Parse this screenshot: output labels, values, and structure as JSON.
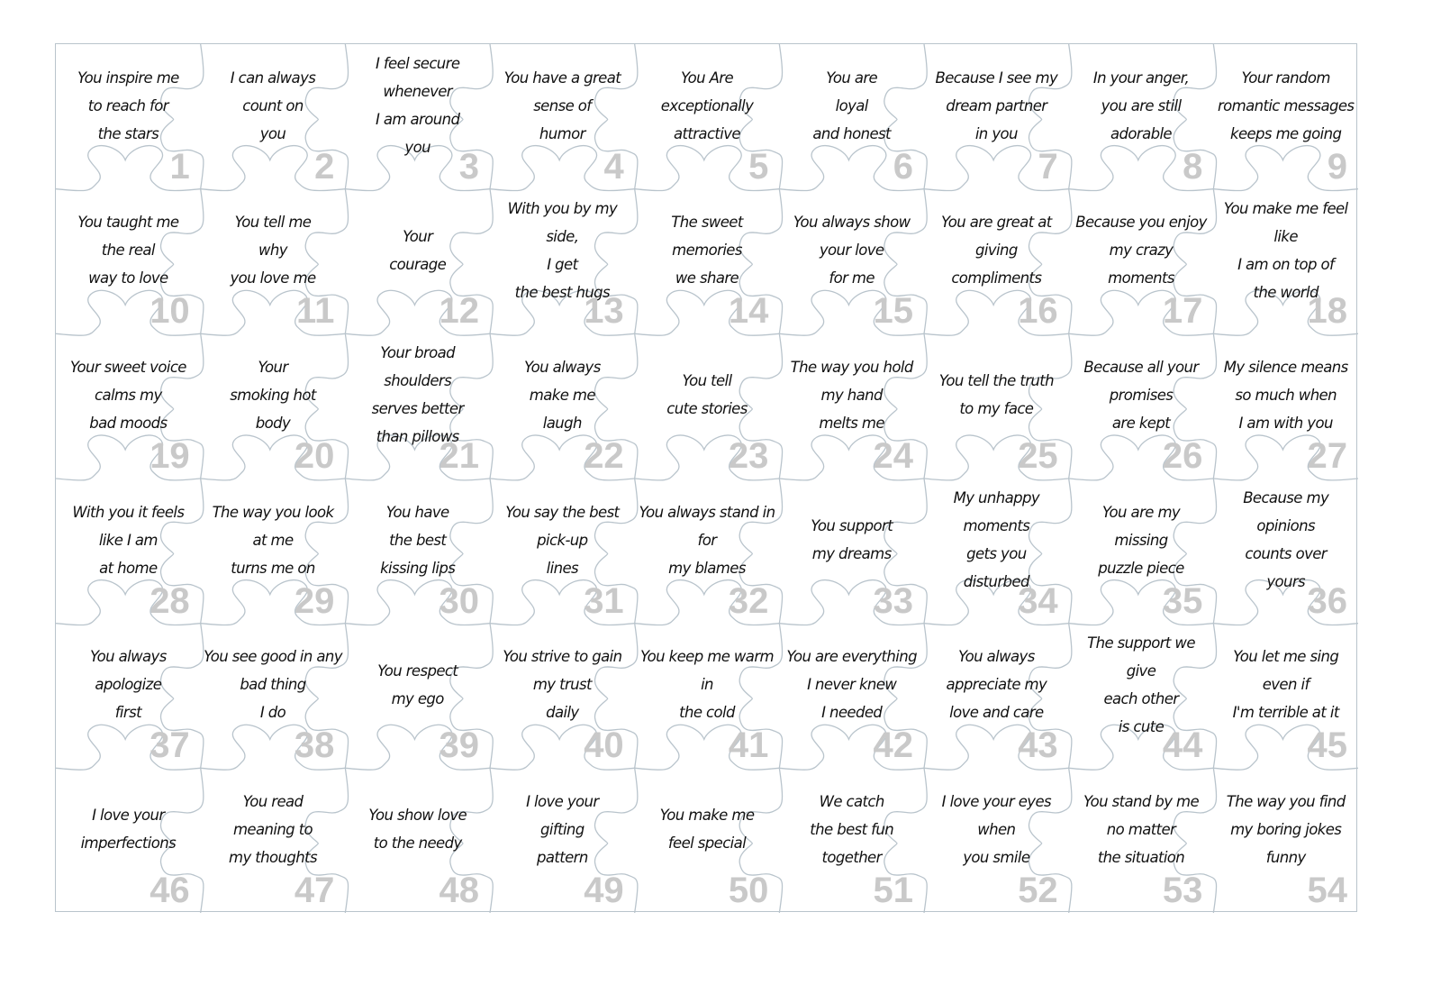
{
  "line_color": "#b9c4cc",
  "number_color": "#c9c9c9",
  "pieces": [
    {
      "n": "1",
      "lines": [
        "You inspire me",
        "to reach for",
        "the stars"
      ]
    },
    {
      "n": "2",
      "lines": [
        "I can always",
        "count on",
        "you"
      ]
    },
    {
      "n": "3",
      "lines": [
        "I feel secure whenever",
        "I am around",
        "you"
      ]
    },
    {
      "n": "4",
      "lines": [
        "You have a great",
        "sense of",
        "humor"
      ]
    },
    {
      "n": "5",
      "lines": [
        "You Are",
        "exceptionally",
        "attractive"
      ]
    },
    {
      "n": "6",
      "lines": [
        "You are",
        "loyal",
        "and honest"
      ]
    },
    {
      "n": "7",
      "lines": [
        "Because I see my",
        "dream partner",
        "in you"
      ]
    },
    {
      "n": "8",
      "lines": [
        "In your anger,",
        "you are still",
        "adorable"
      ]
    },
    {
      "n": "9",
      "lines": [
        "Your random",
        "romantic messages",
        "keeps me going"
      ]
    },
    {
      "n": "10",
      "lines": [
        "You taught me",
        "the real",
        "way to love"
      ]
    },
    {
      "n": "11",
      "lines": [
        "You tell me",
        "why",
        "you love me"
      ]
    },
    {
      "n": "12",
      "lines": [
        "Your",
        "courage"
      ]
    },
    {
      "n": "13",
      "lines": [
        "With you by my side,",
        "I get",
        "the best hugs"
      ]
    },
    {
      "n": "14",
      "lines": [
        "The sweet",
        "memories",
        "we share"
      ]
    },
    {
      "n": "15",
      "lines": [
        "You always show",
        "your love",
        "for me"
      ]
    },
    {
      "n": "16",
      "lines": [
        "You are great at",
        "giving",
        "compliments"
      ]
    },
    {
      "n": "17",
      "lines": [
        "Because you enjoy",
        "my crazy",
        "moments"
      ]
    },
    {
      "n": "18",
      "lines": [
        "You make me feel like",
        "I am on top of",
        "the world"
      ]
    },
    {
      "n": "19",
      "lines": [
        "Your sweet voice",
        "calms my",
        "bad moods"
      ]
    },
    {
      "n": "20",
      "lines": [
        "Your",
        "smoking hot",
        "body"
      ]
    },
    {
      "n": "21",
      "lines": [
        "Your broad shoulders",
        "serves better",
        "than pillows"
      ]
    },
    {
      "n": "22",
      "lines": [
        "You always",
        "make me",
        "laugh"
      ]
    },
    {
      "n": "23",
      "lines": [
        "You tell",
        "cute stories"
      ]
    },
    {
      "n": "24",
      "lines": [
        "The way you hold",
        "my hand",
        "melts me"
      ]
    },
    {
      "n": "25",
      "lines": [
        "You tell the truth",
        "to my face"
      ]
    },
    {
      "n": "26",
      "lines": [
        "Because all your",
        "promises",
        "are kept"
      ]
    },
    {
      "n": "27",
      "lines": [
        "My silence means",
        "so much when",
        "I am with you"
      ]
    },
    {
      "n": "28",
      "lines": [
        "With you it feels",
        "like I am",
        "at home"
      ]
    },
    {
      "n": "29",
      "lines": [
        "The way you look",
        "at me",
        "turns me on"
      ]
    },
    {
      "n": "30",
      "lines": [
        "You have",
        "the best",
        "kissing lips"
      ]
    },
    {
      "n": "31",
      "lines": [
        "You say the best",
        "pick-up",
        "lines"
      ]
    },
    {
      "n": "32",
      "lines": [
        "You always stand in",
        "for",
        "my blames"
      ]
    },
    {
      "n": "33",
      "lines": [
        "You support",
        "my dreams"
      ]
    },
    {
      "n": "34",
      "lines": [
        "My unhappy moments",
        "gets you",
        "disturbed"
      ]
    },
    {
      "n": "35",
      "lines": [
        "You are my",
        "missing",
        "puzzle piece"
      ]
    },
    {
      "n": "36",
      "lines": [
        "Because my opinions",
        "counts over",
        "yours"
      ]
    },
    {
      "n": "37",
      "lines": [
        "You always",
        "apologize",
        "first"
      ]
    },
    {
      "n": "38",
      "lines": [
        "You see good in any",
        "bad thing",
        "I do"
      ]
    },
    {
      "n": "39",
      "lines": [
        "You respect",
        "my ego"
      ]
    },
    {
      "n": "40",
      "lines": [
        "You strive to gain",
        "my trust",
        "daily"
      ]
    },
    {
      "n": "41",
      "lines": [
        "You keep me warm",
        "in",
        "the cold"
      ]
    },
    {
      "n": "42",
      "lines": [
        "You are everything",
        "I never knew",
        "I needed"
      ]
    },
    {
      "n": "43",
      "lines": [
        "You always",
        "appreciate my",
        "love and care"
      ]
    },
    {
      "n": "44",
      "lines": [
        "The support we give",
        "each other",
        "is cute"
      ]
    },
    {
      "n": "45",
      "lines": [
        "You let me sing",
        "even if",
        "I'm terrible at it"
      ]
    },
    {
      "n": "46",
      "lines": [
        "I love your",
        "imperfections"
      ]
    },
    {
      "n": "47",
      "lines": [
        "You read",
        "meaning to",
        "my thoughts"
      ]
    },
    {
      "n": "48",
      "lines": [
        "You show love",
        "to the needy"
      ]
    },
    {
      "n": "49",
      "lines": [
        "I love your",
        "gifting",
        "pattern"
      ]
    },
    {
      "n": "50",
      "lines": [
        "You make me",
        "feel special"
      ]
    },
    {
      "n": "51",
      "lines": [
        "We catch",
        "the best fun",
        "together"
      ]
    },
    {
      "n": "52",
      "lines": [
        "I love your eyes",
        "when",
        "you smile"
      ]
    },
    {
      "n": "53",
      "lines": [
        "You stand by me",
        "no matter",
        "the situation"
      ]
    },
    {
      "n": "54",
      "lines": [
        "The way you find",
        "my boring jokes",
        "funny"
      ]
    }
  ]
}
